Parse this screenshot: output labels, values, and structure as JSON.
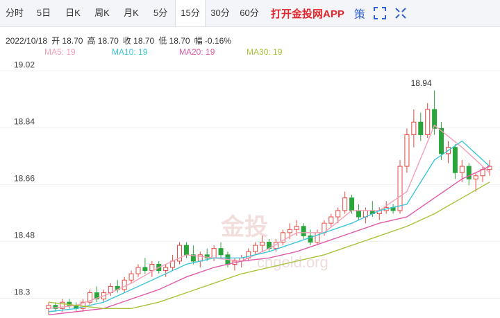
{
  "tabs": [
    "分时",
    "5日",
    "日K",
    "周K",
    "月K",
    "5分",
    "15分",
    "30分",
    "60分"
  ],
  "active_tab": 6,
  "app_link": "打开金投网APP",
  "menu_icon": "策",
  "info": {
    "date": "2022/10/18",
    "items": [
      "开 18.70",
      "高 18.70",
      "收 18.70",
      "低 18.70",
      "幅 -0.16%"
    ]
  },
  "watermark": [
    "金投",
    "cngold.org"
  ],
  "chart_data": {
    "type": "candlestick",
    "ylim": [
      18.22,
      19.04
    ],
    "yticks": [
      19.02,
      18.84,
      18.66,
      18.48,
      18.3
    ],
    "grid": true,
    "up_color": "#e8473f",
    "down_color": "#2ba53b",
    "annotation": {
      "text": "18.94",
      "index": 56
    },
    "ohlc": [
      [
        18.25,
        18.27,
        18.23,
        18.26
      ],
      [
        18.26,
        18.27,
        18.24,
        18.25
      ],
      [
        18.25,
        18.28,
        18.24,
        18.27
      ],
      [
        18.27,
        18.28,
        18.25,
        18.26
      ],
      [
        18.26,
        18.27,
        18.24,
        18.25
      ],
      [
        18.25,
        18.28,
        18.24,
        18.27
      ],
      [
        18.27,
        18.31,
        18.26,
        18.3
      ],
      [
        18.3,
        18.32,
        18.27,
        18.28
      ],
      [
        18.28,
        18.31,
        18.27,
        18.3
      ],
      [
        18.3,
        18.33,
        18.29,
        18.32
      ],
      [
        18.32,
        18.34,
        18.3,
        18.31
      ],
      [
        18.31,
        18.35,
        18.3,
        18.34
      ],
      [
        18.34,
        18.37,
        18.33,
        18.36
      ],
      [
        18.36,
        18.39,
        18.35,
        18.38
      ],
      [
        18.38,
        18.41,
        18.36,
        18.37
      ],
      [
        18.37,
        18.4,
        18.35,
        18.39
      ],
      [
        18.39,
        18.4,
        18.36,
        18.37
      ],
      [
        18.37,
        18.39,
        18.35,
        18.38
      ],
      [
        18.38,
        18.42,
        18.37,
        18.4
      ],
      [
        18.4,
        18.46,
        18.39,
        18.45
      ],
      [
        18.45,
        18.46,
        18.41,
        18.42
      ],
      [
        18.42,
        18.45,
        18.39,
        18.4
      ],
      [
        18.4,
        18.43,
        18.38,
        18.42
      ],
      [
        18.42,
        18.44,
        18.4,
        18.41
      ],
      [
        18.41,
        18.45,
        18.4,
        18.44
      ],
      [
        18.44,
        18.46,
        18.41,
        18.42
      ],
      [
        18.42,
        18.43,
        18.38,
        18.39
      ],
      [
        18.39,
        18.41,
        18.37,
        18.4
      ],
      [
        18.4,
        18.42,
        18.38,
        18.41
      ],
      [
        18.41,
        18.44,
        18.4,
        18.43
      ],
      [
        18.43,
        18.46,
        18.42,
        18.45
      ],
      [
        18.45,
        18.48,
        18.43,
        18.46
      ],
      [
        18.46,
        18.47,
        18.43,
        18.44
      ],
      [
        18.44,
        18.47,
        18.43,
        18.46
      ],
      [
        18.46,
        18.5,
        18.45,
        18.49
      ],
      [
        18.49,
        18.52,
        18.47,
        18.5
      ],
      [
        18.5,
        18.53,
        18.48,
        18.51
      ],
      [
        18.51,
        18.52,
        18.47,
        18.48
      ],
      [
        18.48,
        18.5,
        18.45,
        18.46
      ],
      [
        18.46,
        18.5,
        18.45,
        18.49
      ],
      [
        18.49,
        18.53,
        18.48,
        18.52
      ],
      [
        18.52,
        18.55,
        18.51,
        18.54
      ],
      [
        18.54,
        18.57,
        18.52,
        18.56
      ],
      [
        18.56,
        18.62,
        18.55,
        18.6
      ],
      [
        18.6,
        18.61,
        18.55,
        18.56
      ],
      [
        18.56,
        18.58,
        18.53,
        18.54
      ],
      [
        18.54,
        18.57,
        18.52,
        18.56
      ],
      [
        18.56,
        18.59,
        18.54,
        18.55
      ],
      [
        18.55,
        18.57,
        18.53,
        18.56
      ],
      [
        18.56,
        18.59,
        18.55,
        18.57
      ],
      [
        18.57,
        18.58,
        18.55,
        18.56
      ],
      [
        18.56,
        18.72,
        18.55,
        18.7
      ],
      [
        18.7,
        18.82,
        18.68,
        18.8
      ],
      [
        18.8,
        18.88,
        18.76,
        18.84
      ],
      [
        18.84,
        18.87,
        18.78,
        18.8
      ],
      [
        18.8,
        18.9,
        18.79,
        18.88
      ],
      [
        18.88,
        18.94,
        18.8,
        18.82
      ],
      [
        18.82,
        18.84,
        18.72,
        18.74
      ],
      [
        18.74,
        18.78,
        18.71,
        18.76
      ],
      [
        18.76,
        18.77,
        18.66,
        18.68
      ],
      [
        18.68,
        18.72,
        18.65,
        18.7
      ],
      [
        18.7,
        18.71,
        18.64,
        18.66
      ],
      [
        18.66,
        18.68,
        18.62,
        18.67
      ],
      [
        18.67,
        18.7,
        18.65,
        18.69
      ],
      [
        18.69,
        18.72,
        18.67,
        18.7
      ]
    ],
    "x": [
      0,
      4,
      8,
      12,
      16,
      20,
      24,
      28,
      32,
      36,
      40,
      44,
      48,
      52,
      56,
      60,
      64
    ],
    "series": [
      {
        "name": "MA5: 19",
        "color": "#f4a0b8",
        "values": [
          18.25,
          18.26,
          18.29,
          18.33,
          18.38,
          18.42,
          18.41,
          18.4,
          18.44,
          18.49,
          18.49,
          18.56,
          18.56,
          18.62,
          18.83,
          18.76,
          18.68
        ]
      },
      {
        "name": "MA10: 19",
        "color": "#3cc6d8",
        "values": [
          18.24,
          18.25,
          18.27,
          18.31,
          18.35,
          18.39,
          18.41,
          18.41,
          18.43,
          18.46,
          18.49,
          18.52,
          18.56,
          18.58,
          18.72,
          18.78,
          18.7
        ]
      },
      {
        "name": "MA20: 19",
        "color": "#e05aa8",
        "values": [
          18.23,
          18.24,
          18.25,
          18.28,
          18.31,
          18.35,
          18.38,
          18.4,
          18.41,
          18.43,
          18.46,
          18.49,
          18.52,
          18.54,
          18.6,
          18.66,
          18.7
        ]
      },
      {
        "name": "MA30: 19",
        "color": "#a8c23a",
        "values": [
          18.27,
          18.26,
          18.25,
          18.25,
          18.27,
          18.3,
          18.33,
          18.36,
          18.38,
          18.4,
          18.42,
          18.45,
          18.48,
          18.51,
          18.55,
          18.6,
          18.65
        ]
      }
    ]
  }
}
